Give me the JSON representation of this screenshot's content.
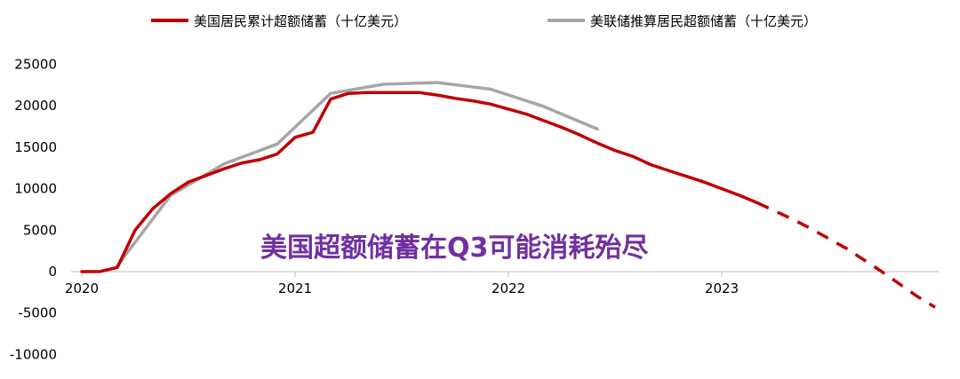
{
  "chart_data": {
    "type": "line",
    "title": "",
    "xlabel": "",
    "ylabel": "",
    "ylim": [
      -10000,
      25000
    ],
    "yticks": [
      "25000",
      "20000",
      "15000",
      "10000",
      "5000",
      "0",
      "-5000",
      "-10000"
    ],
    "xticks": [
      "2020",
      "2021",
      "2022",
      "2023"
    ],
    "legend_position": "top",
    "grid": false,
    "annotation": "美国超额储蓄在Q3可能消耗殆尽",
    "annotation_color": "#7030a0",
    "series": [
      {
        "name": "美国居民累计超额储蓄（十亿美元）",
        "color": "#c00000",
        "points": [
          [
            "2020-01",
            0
          ],
          [
            "2020-02",
            0
          ],
          [
            "2020-03",
            500
          ],
          [
            "2020-04",
            5000
          ],
          [
            "2020-05",
            7600
          ],
          [
            "2020-06",
            9400
          ],
          [
            "2020-07",
            10800
          ],
          [
            "2020-08",
            11600
          ],
          [
            "2020-09",
            12400
          ],
          [
            "2020-10",
            13100
          ],
          [
            "2020-11",
            13500
          ],
          [
            "2020-12",
            14200
          ],
          [
            "2021-01",
            16200
          ],
          [
            "2021-02",
            16800
          ],
          [
            "2021-03",
            20800
          ],
          [
            "2021-04",
            21500
          ],
          [
            "2021-05",
            21600
          ],
          [
            "2021-06",
            21600
          ],
          [
            "2021-07",
            21600
          ],
          [
            "2021-08",
            21600
          ],
          [
            "2021-09",
            21300
          ],
          [
            "2021-10",
            20900
          ],
          [
            "2021-11",
            20600
          ],
          [
            "2021-12",
            20200
          ],
          [
            "2022-01",
            19600
          ],
          [
            "2022-02",
            19000
          ],
          [
            "2022-03",
            18200
          ],
          [
            "2022-04",
            17400
          ],
          [
            "2022-05",
            16500
          ],
          [
            "2022-06",
            15500
          ],
          [
            "2022-07",
            14600
          ],
          [
            "2022-08",
            13900
          ],
          [
            "2022-09",
            12900
          ],
          [
            "2022-10",
            12200
          ],
          [
            "2022-11",
            11500
          ],
          [
            "2022-12",
            10800
          ],
          [
            "2023-01",
            10000
          ],
          [
            "2023-02",
            9200
          ],
          [
            "2023-03",
            8300
          ]
        ],
        "projection": [
          [
            "2023-03",
            8300
          ],
          [
            "2023-04",
            7300
          ],
          [
            "2023-05",
            6300
          ],
          [
            "2023-06",
            5200
          ],
          [
            "2023-07",
            4000
          ],
          [
            "2023-08",
            2800
          ],
          [
            "2023-09",
            1400
          ],
          [
            "2023-10",
            0
          ],
          [
            "2023-11",
            -1500
          ],
          [
            "2023-12",
            -3000
          ],
          [
            "2024-01",
            -4300
          ]
        ]
      },
      {
        "name": "美联储推算居民超额储蓄（十亿美元）",
        "color": "#a6a6a6",
        "points": [
          [
            "2020-03",
            700
          ],
          [
            "2020-06",
            9200
          ],
          [
            "2020-09",
            13000
          ],
          [
            "2020-12",
            15400
          ],
          [
            "2021-03",
            21500
          ],
          [
            "2021-06",
            22600
          ],
          [
            "2021-09",
            22800
          ],
          [
            "2021-12",
            22000
          ],
          [
            "2022-03",
            19900
          ],
          [
            "2022-06",
            17200
          ]
        ]
      }
    ]
  }
}
